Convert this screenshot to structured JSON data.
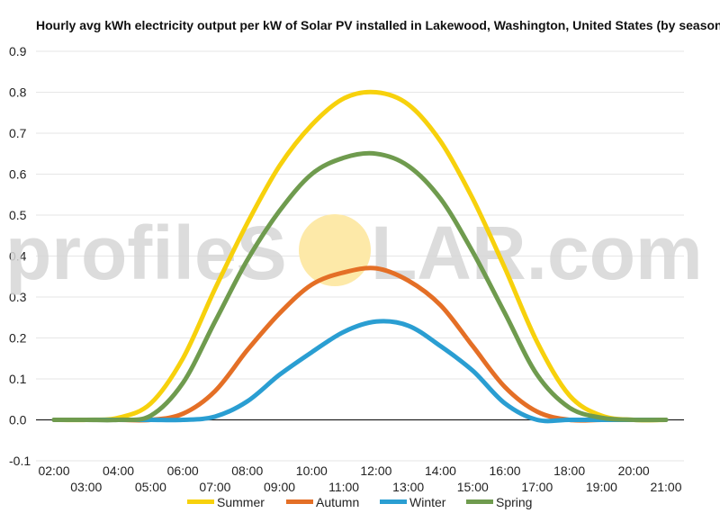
{
  "watermark": {
    "parts": [
      "profileS",
      "LAR.com"
    ],
    "sun_color": "#fde9a8"
  },
  "chart_data": {
    "type": "line",
    "title": "Hourly avg kWh electricity output per kW of Solar PV installed in Lakewood, Washington, United States (by season)",
    "xlabel": "",
    "ylabel": "",
    "xlim": [
      2,
      21
    ],
    "ylim": [
      -0.1,
      0.9
    ],
    "yticks": [
      "-0.1",
      "0.0",
      "0.1",
      "0.2",
      "0.3",
      "0.4",
      "0.5",
      "0.6",
      "0.7",
      "0.8",
      "0.9"
    ],
    "xticks_upper": [
      "02:00",
      "04:00",
      "06:00",
      "08:00",
      "10:00",
      "12:00",
      "14:00",
      "16:00",
      "18:00",
      "20:00"
    ],
    "xticks_lower": [
      "03:00",
      "05:00",
      "07:00",
      "09:00",
      "11:00",
      "13:00",
      "15:00",
      "17:00",
      "19:00",
      "21:00"
    ],
    "grid": true,
    "legend_position": "bottom",
    "hours": [
      2,
      3,
      4,
      5,
      6,
      7,
      8,
      9,
      10,
      11,
      12,
      13,
      14,
      15,
      16,
      17,
      18,
      19,
      20,
      21
    ],
    "series": [
      {
        "name": "Summer",
        "color": "#f7d10c",
        "values": [
          0.0,
          0.0,
          0.005,
          0.04,
          0.15,
          0.32,
          0.48,
          0.62,
          0.72,
          0.785,
          0.8,
          0.77,
          0.68,
          0.54,
          0.37,
          0.19,
          0.06,
          0.01,
          0.0,
          0.0
        ]
      },
      {
        "name": "Autumn",
        "color": "#e46f26",
        "values": [
          0.0,
          0.0,
          0.0,
          0.0,
          0.015,
          0.07,
          0.17,
          0.26,
          0.33,
          0.36,
          0.37,
          0.34,
          0.28,
          0.18,
          0.08,
          0.02,
          0.0,
          0.0,
          0.0,
          0.0
        ]
      },
      {
        "name": "Winter",
        "color": "#2a9ed2",
        "values": [
          0.0,
          0.0,
          0.0,
          0.0,
          0.0,
          0.008,
          0.045,
          0.11,
          0.165,
          0.215,
          0.24,
          0.23,
          0.18,
          0.12,
          0.04,
          0.0,
          0.0,
          0.0,
          0.0,
          0.0
        ]
      },
      {
        "name": "Spring",
        "color": "#6f9b4e",
        "values": [
          0.0,
          0.0,
          0.0,
          0.01,
          0.09,
          0.24,
          0.39,
          0.51,
          0.6,
          0.64,
          0.65,
          0.62,
          0.54,
          0.41,
          0.26,
          0.11,
          0.03,
          0.005,
          0.0,
          0.0
        ]
      }
    ]
  }
}
